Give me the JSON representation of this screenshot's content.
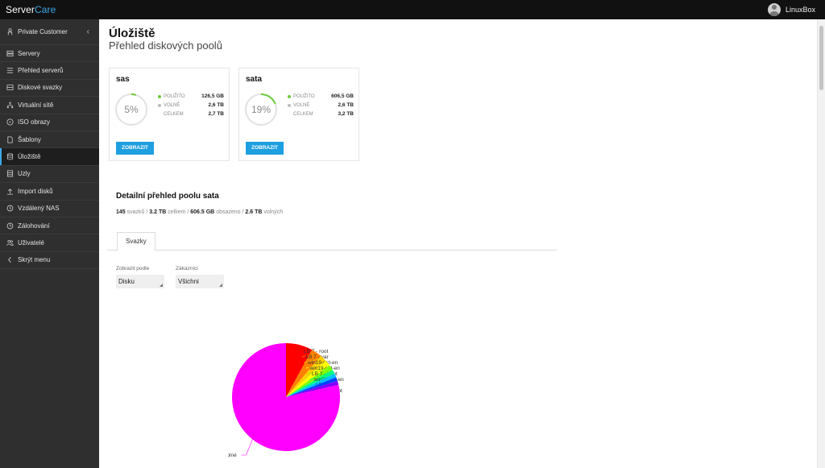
{
  "app": {
    "brand_main": "Server",
    "brand_accent": "Care",
    "user_name": "LinuxBox",
    "accent_color": "#3fa9e8"
  },
  "sidebar": {
    "customer": "Private Customer",
    "items": [
      {
        "label": "Servery",
        "icon": "server-icon",
        "active": false
      },
      {
        "label": "Přehled serverů",
        "icon": "list-icon",
        "active": false
      },
      {
        "label": "Diskové svazky",
        "icon": "disk-icon",
        "active": false
      },
      {
        "label": "Virtuální sítě",
        "icon": "network-icon",
        "active": false
      },
      {
        "label": "ISO obrazy",
        "icon": "disc-icon",
        "active": false
      },
      {
        "label": "Šablony",
        "icon": "template-icon",
        "active": false
      },
      {
        "label": "Úložiště",
        "icon": "database-icon",
        "active": true
      },
      {
        "label": "Uzly",
        "icon": "node-icon",
        "active": false
      },
      {
        "label": "Import disků",
        "icon": "upload-icon",
        "active": false
      },
      {
        "label": "Vzdálený NAS",
        "icon": "history-icon",
        "active": false
      },
      {
        "label": "Zálohování",
        "icon": "backup-icon",
        "active": false
      },
      {
        "label": "Uživatelé",
        "icon": "users-icon",
        "active": false
      },
      {
        "label": "Skrýt menu",
        "icon": "chevron-left-icon",
        "active": false
      }
    ]
  },
  "page": {
    "title": "Úložiště",
    "subtitle": "Přehled diskových poolů"
  },
  "pools": [
    {
      "name": "sas",
      "percent_label": "5%",
      "used_fraction": 0.05,
      "used_label": "POUŽITO",
      "used_value": "126,5 GB",
      "free_label": "VOLNÉ",
      "free_value": "2,6 TB",
      "total_label": "CELKEM",
      "total_value": "2,7 TB",
      "button": "ZOBRAZIT"
    },
    {
      "name": "sata",
      "percent_label": "19%",
      "used_fraction": 0.19,
      "used_label": "POUŽITO",
      "used_value": "606,5 GB",
      "free_label": "VOLNÉ",
      "free_value": "2,6 TB",
      "total_label": "CELKEM",
      "total_value": "3,2 TB",
      "button": "ZOBRAZIT"
    }
  ],
  "detail": {
    "title": "Detailní přehled poolu sata",
    "volumes_count": "145",
    "volumes_label": "svazků /",
    "total_value": "3.2 TB",
    "total_label": "celkem /",
    "used_value": "606.5 GB",
    "used_label": "obsazeno /",
    "free_value": "2.6 TB",
    "free_label": "volných"
  },
  "tabs": [
    {
      "label": "Svazky"
    }
  ],
  "filters": {
    "display_by_label": "Zobrazit podle",
    "display_by_value": "Disku",
    "customers_label": "Zákazníci",
    "customers_value": "Všichni"
  },
  "chart_data": {
    "type": "pie",
    "title": "",
    "slices": [
      {
        "label": "LB 7 - root",
        "value": 8.0,
        "color": "#ff0000"
      },
      {
        "label": "LB 7 - var",
        "value": 3.2,
        "color": "#ff8000"
      },
      {
        "label": "win19-std-en",
        "value": 2.0,
        "color": "#ffd000"
      },
      {
        "label": "win19-std-en",
        "value": 1.8,
        "color": "#ffff00"
      },
      {
        "label": "LB 7 - boot",
        "value": 1.5,
        "color": "#80ff00"
      },
      {
        "label": "win19-std-en",
        "value": 1.3,
        "color": "#00ff80"
      },
      {
        "label": "LB 7 - var",
        "value": 1.2,
        "color": "#00c0ff"
      },
      {
        "label": "LB 7 - root",
        "value": 1.1,
        "color": "#0040ff"
      },
      {
        "label": "Ostatní",
        "value": 1.2,
        "color": "#8000ff"
      },
      {
        "label": "Volné",
        "value": 78.7,
        "color": "#ff00ff"
      }
    ]
  }
}
